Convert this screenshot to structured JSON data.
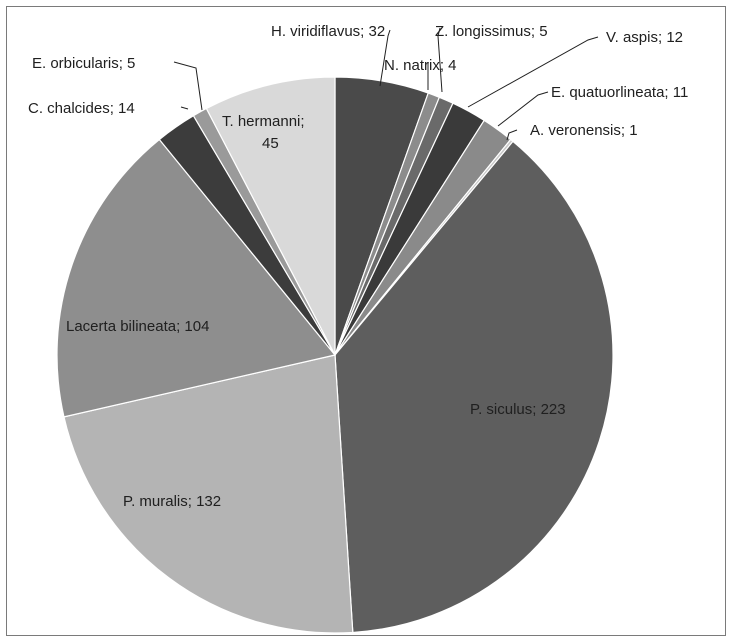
{
  "chart_data": {
    "type": "pie",
    "slices": [
      {
        "label": "H. viridiflavus",
        "value": 32,
        "color": "#4a4a4a"
      },
      {
        "label": "N. natrix",
        "value": 4,
        "color": "#8c8c8c"
      },
      {
        "label": "Z. longissimus",
        "value": 5,
        "color": "#6a6a6a"
      },
      {
        "label": "V. aspis",
        "value": 12,
        "color": "#3a3a3a"
      },
      {
        "label": "E. quatuorlineata",
        "value": 11,
        "color": "#8a8a8a"
      },
      {
        "label": "A. veronensis",
        "value": 1,
        "color": "#c8c8c8"
      },
      {
        "label": "P. siculus",
        "value": 223,
        "color": "#5e5e5e"
      },
      {
        "label": "P. muralis",
        "value": 132,
        "color": "#b4b4b4"
      },
      {
        "label": "Lacerta bilineata",
        "value": 104,
        "color": "#8e8e8e"
      },
      {
        "label": "C. chalcides",
        "value": 14,
        "color": "#3c3c3c"
      },
      {
        "label": "E. orbicularis",
        "value": 5,
        "color": "#9a9a9a"
      },
      {
        "label": "T. hermanni",
        "value": 45,
        "color": "#d9d9d9"
      }
    ],
    "label_texts": [
      "H. viridiflavus; 32",
      "N. natrix; 4",
      "Z. longissimus; 5",
      "V. aspis; 12",
      "E. quatuorlineata; 11",
      "A. veronensis; 1",
      "P. siculus; 223",
      "P. muralis; 132",
      "Lacerta bilineata; 104",
      "C. chalcides; 14",
      "E. orbicularis; 5",
      "T. hermanni;",
      "45"
    ]
  }
}
